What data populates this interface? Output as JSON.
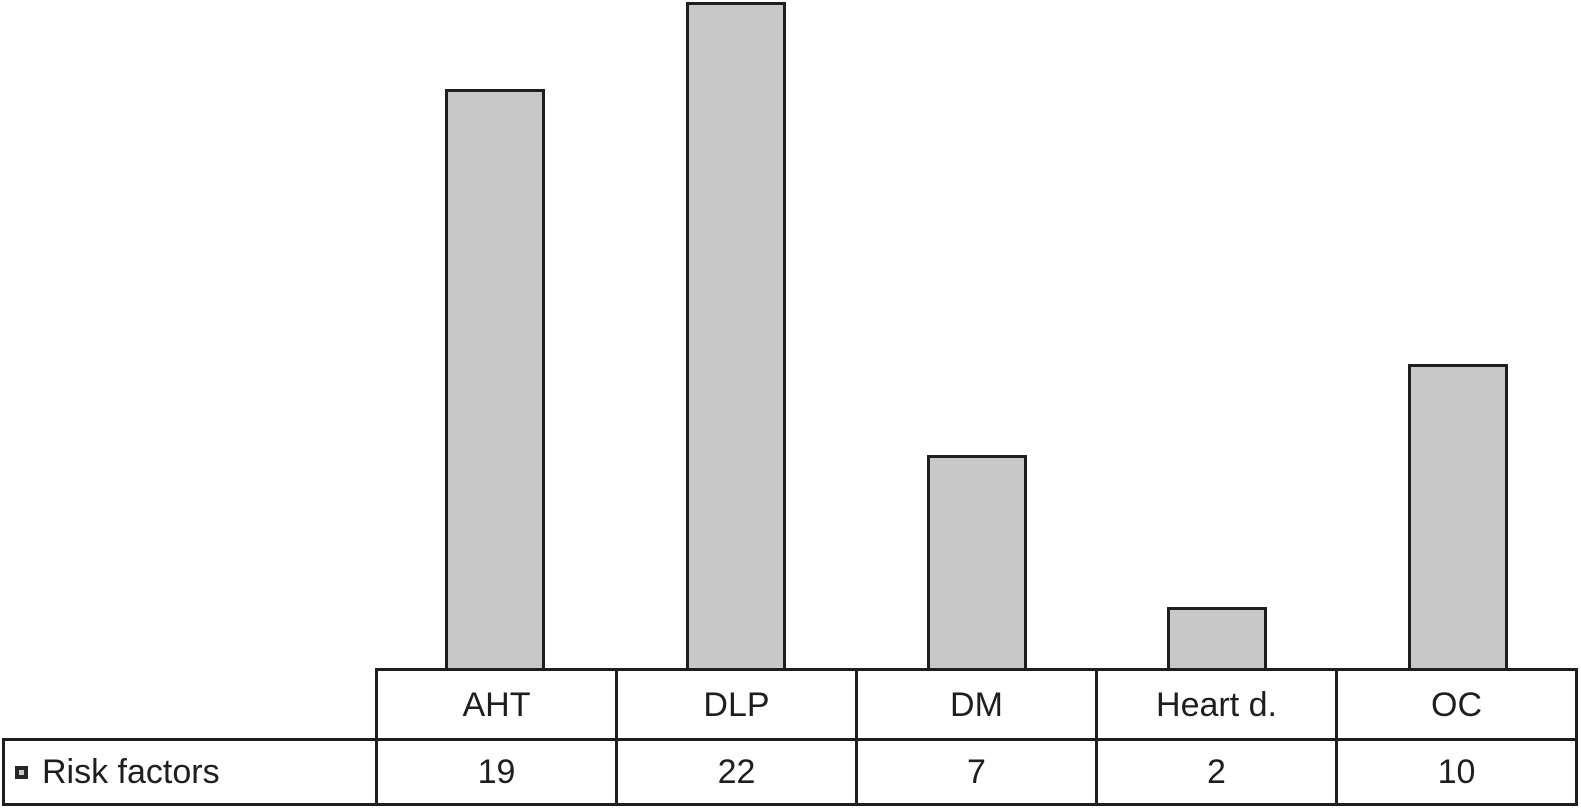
{
  "chart_data": {
    "type": "bar",
    "title": "",
    "categories": [
      "AHT",
      "DLP",
      "DM",
      "Heart d.",
      "OC"
    ],
    "series": [
      {
        "name": "Risk factors",
        "values": [
          19,
          22,
          7,
          2,
          10
        ]
      }
    ],
    "xlabel": "",
    "ylabel": "",
    "ylim": [
      0,
      22
    ],
    "grid": false,
    "axes_shown": false,
    "legend_position": "bottom-left",
    "data_table_shown": true,
    "bar_fill_color": "#c8c8c8",
    "bar_border_color": "#1e1e1e"
  },
  "legend": {
    "label": "Risk factors",
    "swatch_color": "#c8c8c8"
  },
  "table": {
    "header_cells": [
      "AHT",
      "DLP",
      "DM",
      "Heart d.",
      "OC"
    ],
    "value_cells": [
      "19",
      "22",
      "7",
      "2",
      "10"
    ]
  }
}
